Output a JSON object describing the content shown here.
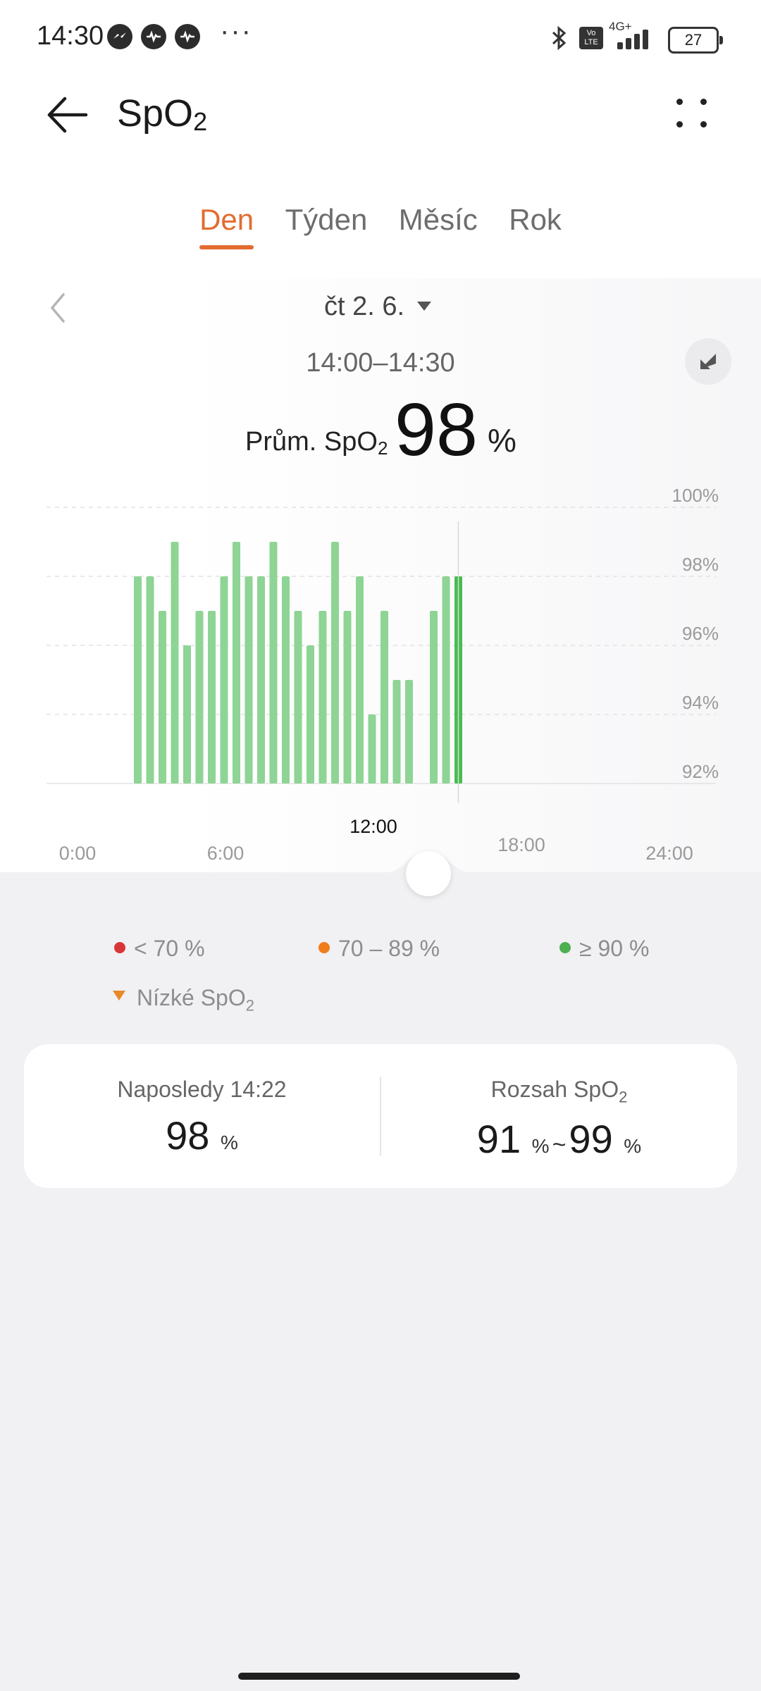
{
  "status_bar": {
    "time": "14:30",
    "notification_icons": [
      "messenger-icon",
      "heart-rate-icon",
      "heart-rate-icon"
    ],
    "more_dots": "···",
    "network_label": "4G+",
    "volte_label": "Vo LTE",
    "battery": "27"
  },
  "header": {
    "title_main": "SpO",
    "title_sub": "2",
    "back_icon": "arrow-left-icon",
    "more_icon": "four-dots-icon"
  },
  "tabs": [
    {
      "label": "Den",
      "active": true
    },
    {
      "label": "Týden",
      "active": false
    },
    {
      "label": "Měsíc",
      "active": false
    },
    {
      "label": "Rok",
      "active": false
    }
  ],
  "date": {
    "label": "čt 2. 6.",
    "time_range": "14:00–14:30"
  },
  "average": {
    "label_main": "Prům. SpO",
    "label_sub": "2",
    "value": "98",
    "unit": "%"
  },
  "colors": {
    "accent": "#e36c2f",
    "bar": "#8ed494",
    "bar_selected": "#46bd4e",
    "low": "#d9343a",
    "mid": "#f07d1a",
    "high": "#4caf50",
    "low_spo2_marker": "#e8892a"
  },
  "chart_data": {
    "type": "bar",
    "y_ticks": [
      "100%",
      "98%",
      "96%",
      "94%",
      "92%"
    ],
    "ylim": [
      92,
      100
    ],
    "x_ticks": [
      "0:00",
      "6:00",
      "12:00",
      "18:00",
      "24:00"
    ],
    "x_label_highlight": "12:00",
    "x_range_hours": [
      0,
      24
    ],
    "bars": [
      {
        "hour": 2.5,
        "value": 98
      },
      {
        "hour": 3.0,
        "value": 98
      },
      {
        "hour": 3.5,
        "value": 97
      },
      {
        "hour": 4.0,
        "value": 99
      },
      {
        "hour": 4.5,
        "value": 96
      },
      {
        "hour": 5.0,
        "value": 97
      },
      {
        "hour": 5.5,
        "value": 97
      },
      {
        "hour": 6.0,
        "value": 98
      },
      {
        "hour": 6.5,
        "value": 99
      },
      {
        "hour": 7.0,
        "value": 98
      },
      {
        "hour": 7.5,
        "value": 98
      },
      {
        "hour": 8.0,
        "value": 99
      },
      {
        "hour": 8.5,
        "value": 98
      },
      {
        "hour": 9.0,
        "value": 97
      },
      {
        "hour": 9.5,
        "value": 96
      },
      {
        "hour": 10.0,
        "value": 97
      },
      {
        "hour": 10.5,
        "value": 99
      },
      {
        "hour": 11.0,
        "value": 97
      },
      {
        "hour": 11.5,
        "value": 98
      },
      {
        "hour": 12.0,
        "value": 94
      },
      {
        "hour": 12.5,
        "value": 97
      },
      {
        "hour": 13.0,
        "value": 95
      },
      {
        "hour": 13.5,
        "value": 95
      },
      {
        "hour": 14.5,
        "value": 97
      },
      {
        "hour": 15.0,
        "value": 98
      },
      {
        "hour": 15.5,
        "value": 98,
        "selected": true
      }
    ]
  },
  "legend": {
    "low": "< 70 %",
    "mid": "70 – 89 %",
    "high": "≥ 90 %",
    "low_spo2_main": "Nízké SpO",
    "low_spo2_sub": "2"
  },
  "summary": {
    "last_label": "Naposledy 14:22",
    "last_value": "98",
    "last_unit": "%",
    "range_label_main": "Rozsah SpO",
    "range_label_sub": "2",
    "range_min": "91",
    "range_max": "99",
    "range_unit": "%",
    "range_sep": "~"
  }
}
